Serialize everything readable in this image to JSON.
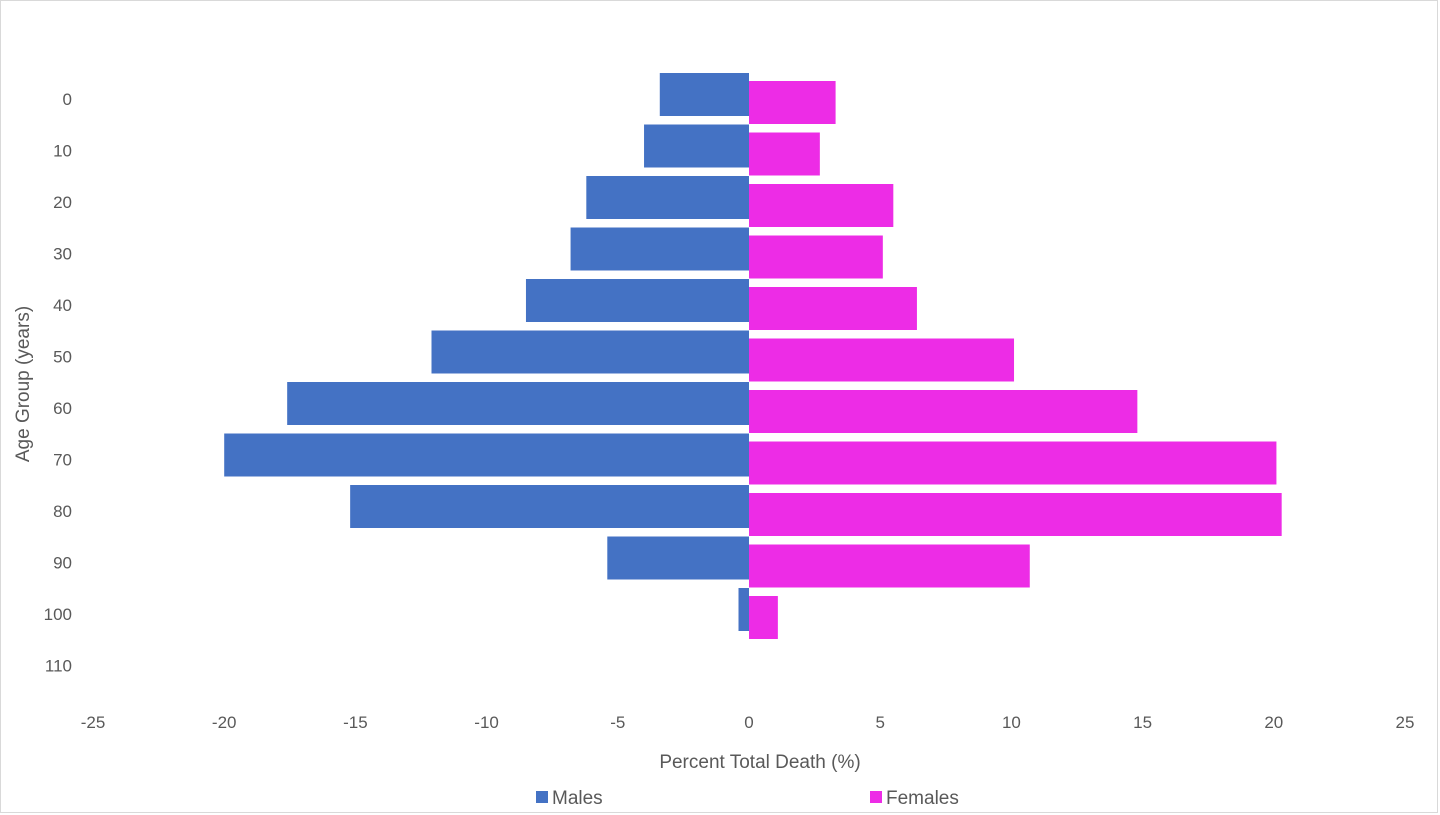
{
  "chart_data": {
    "type": "bar",
    "orientation": "horizontal",
    "title": "",
    "xlabel": "Percent Total Death (%)",
    "ylabel": "Age Group (years)",
    "xlim": [
      -25,
      25
    ],
    "x_ticks": [
      "-25",
      "-20",
      "-15",
      "-10",
      "-5",
      "0",
      "5",
      "10",
      "15",
      "20",
      "25"
    ],
    "categories": [
      "0",
      "10",
      "20",
      "30",
      "40",
      "50",
      "60",
      "70",
      "80",
      "90",
      "100",
      "110"
    ],
    "grid": false,
    "legend_position": "bottom",
    "series": [
      {
        "name": "Males",
        "color": "#4472c4",
        "values": [
          -3.4,
          -4.0,
          -6.2,
          -6.8,
          -8.5,
          -12.1,
          -17.6,
          -20.0,
          -15.2,
          -5.4,
          -0.4,
          0
        ]
      },
      {
        "name": "Females",
        "color": "#ed2ce6",
        "values": [
          3.3,
          2.7,
          5.5,
          5.1,
          6.4,
          10.1,
          14.8,
          20.1,
          20.3,
          10.7,
          1.1,
          0
        ]
      }
    ]
  }
}
